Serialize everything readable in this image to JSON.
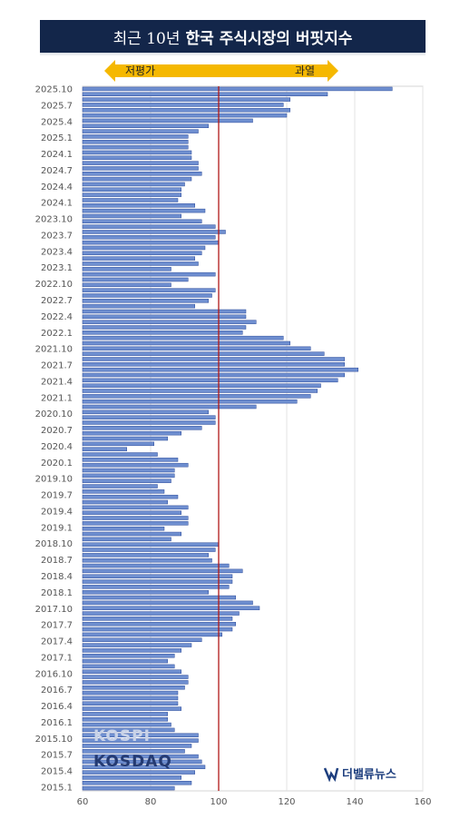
{
  "header": {
    "title_prefix": "최근 10년",
    "title_main": "한국 주식시장의 버핏지수",
    "left_label": "저평가",
    "right_label": "과열"
  },
  "watermarks": {
    "kospi": "KOSPI",
    "kosdaq": "KOSDAQ",
    "brand": "더밸류뉴스"
  },
  "colors": {
    "bar_fill": "#6f8fd0",
    "bar_stroke": "#2b4a9a",
    "reference_line": "#b01818",
    "title_bg": "#13264a",
    "arrow": "#f5b800"
  },
  "chart_data": {
    "type": "bar",
    "orientation": "horizontal",
    "xlim": [
      60,
      160
    ],
    "xticks": [
      60,
      80,
      100,
      120,
      140,
      160
    ],
    "reference_line": 100,
    "grid": true,
    "period_labels": [
      "2025.10",
      "2025.7",
      "2025.4",
      "2025.1",
      "2024.1",
      "2024.7",
      "2024.4",
      "2024.1",
      "2023.10",
      "2023.7",
      "2023.4",
      "2023.1",
      "2022.10",
      "2022.7",
      "2022.4",
      "2022.1",
      "2021.10",
      "2021.7",
      "2021.4",
      "2021.1",
      "2020.10",
      "2020.7",
      "2020.4",
      "2020.1",
      "2019.10",
      "2019.7",
      "2019.4",
      "2019.1",
      "2018.10",
      "2018.7",
      "2018.4",
      "2018.1",
      "2017.10",
      "2017.7",
      "2017.4",
      "2017.1",
      "2016.10",
      "2016.7",
      "2016.4",
      "2016.1",
      "2015.10",
      "2015.7",
      "2015.4",
      "2015.1"
    ],
    "values": [
      151,
      132,
      121,
      119,
      121,
      120,
      110,
      97,
      94,
      91,
      91,
      91,
      92,
      92,
      94,
      94,
      95,
      92,
      90,
      89,
      89,
      88,
      93,
      96,
      89,
      95,
      99,
      102,
      99,
      100,
      96,
      95,
      93,
      94,
      86,
      99,
      91,
      86,
      99,
      98,
      97,
      93,
      108,
      108,
      111,
      108,
      107,
      119,
      121,
      127,
      131,
      137,
      137,
      141,
      137,
      135,
      130,
      129,
      127,
      123,
      111,
      97,
      99,
      99,
      95,
      89,
      85,
      81,
      73,
      82,
      88,
      91,
      87,
      87,
      86,
      82,
      84,
      88,
      85,
      91,
      89,
      91,
      91,
      84,
      89,
      86,
      100,
      99,
      97,
      98,
      103,
      107,
      104,
      104,
      103,
      97,
      105,
      110,
      112,
      106,
      104,
      105,
      104,
      101,
      95,
      92,
      89,
      87,
      85,
      87,
      89,
      91,
      91,
      90,
      88,
      88,
      88,
      89,
      85,
      85,
      86,
      87,
      94,
      94,
      92,
      90,
      94,
      95,
      96,
      93,
      89,
      92,
      87
    ]
  }
}
